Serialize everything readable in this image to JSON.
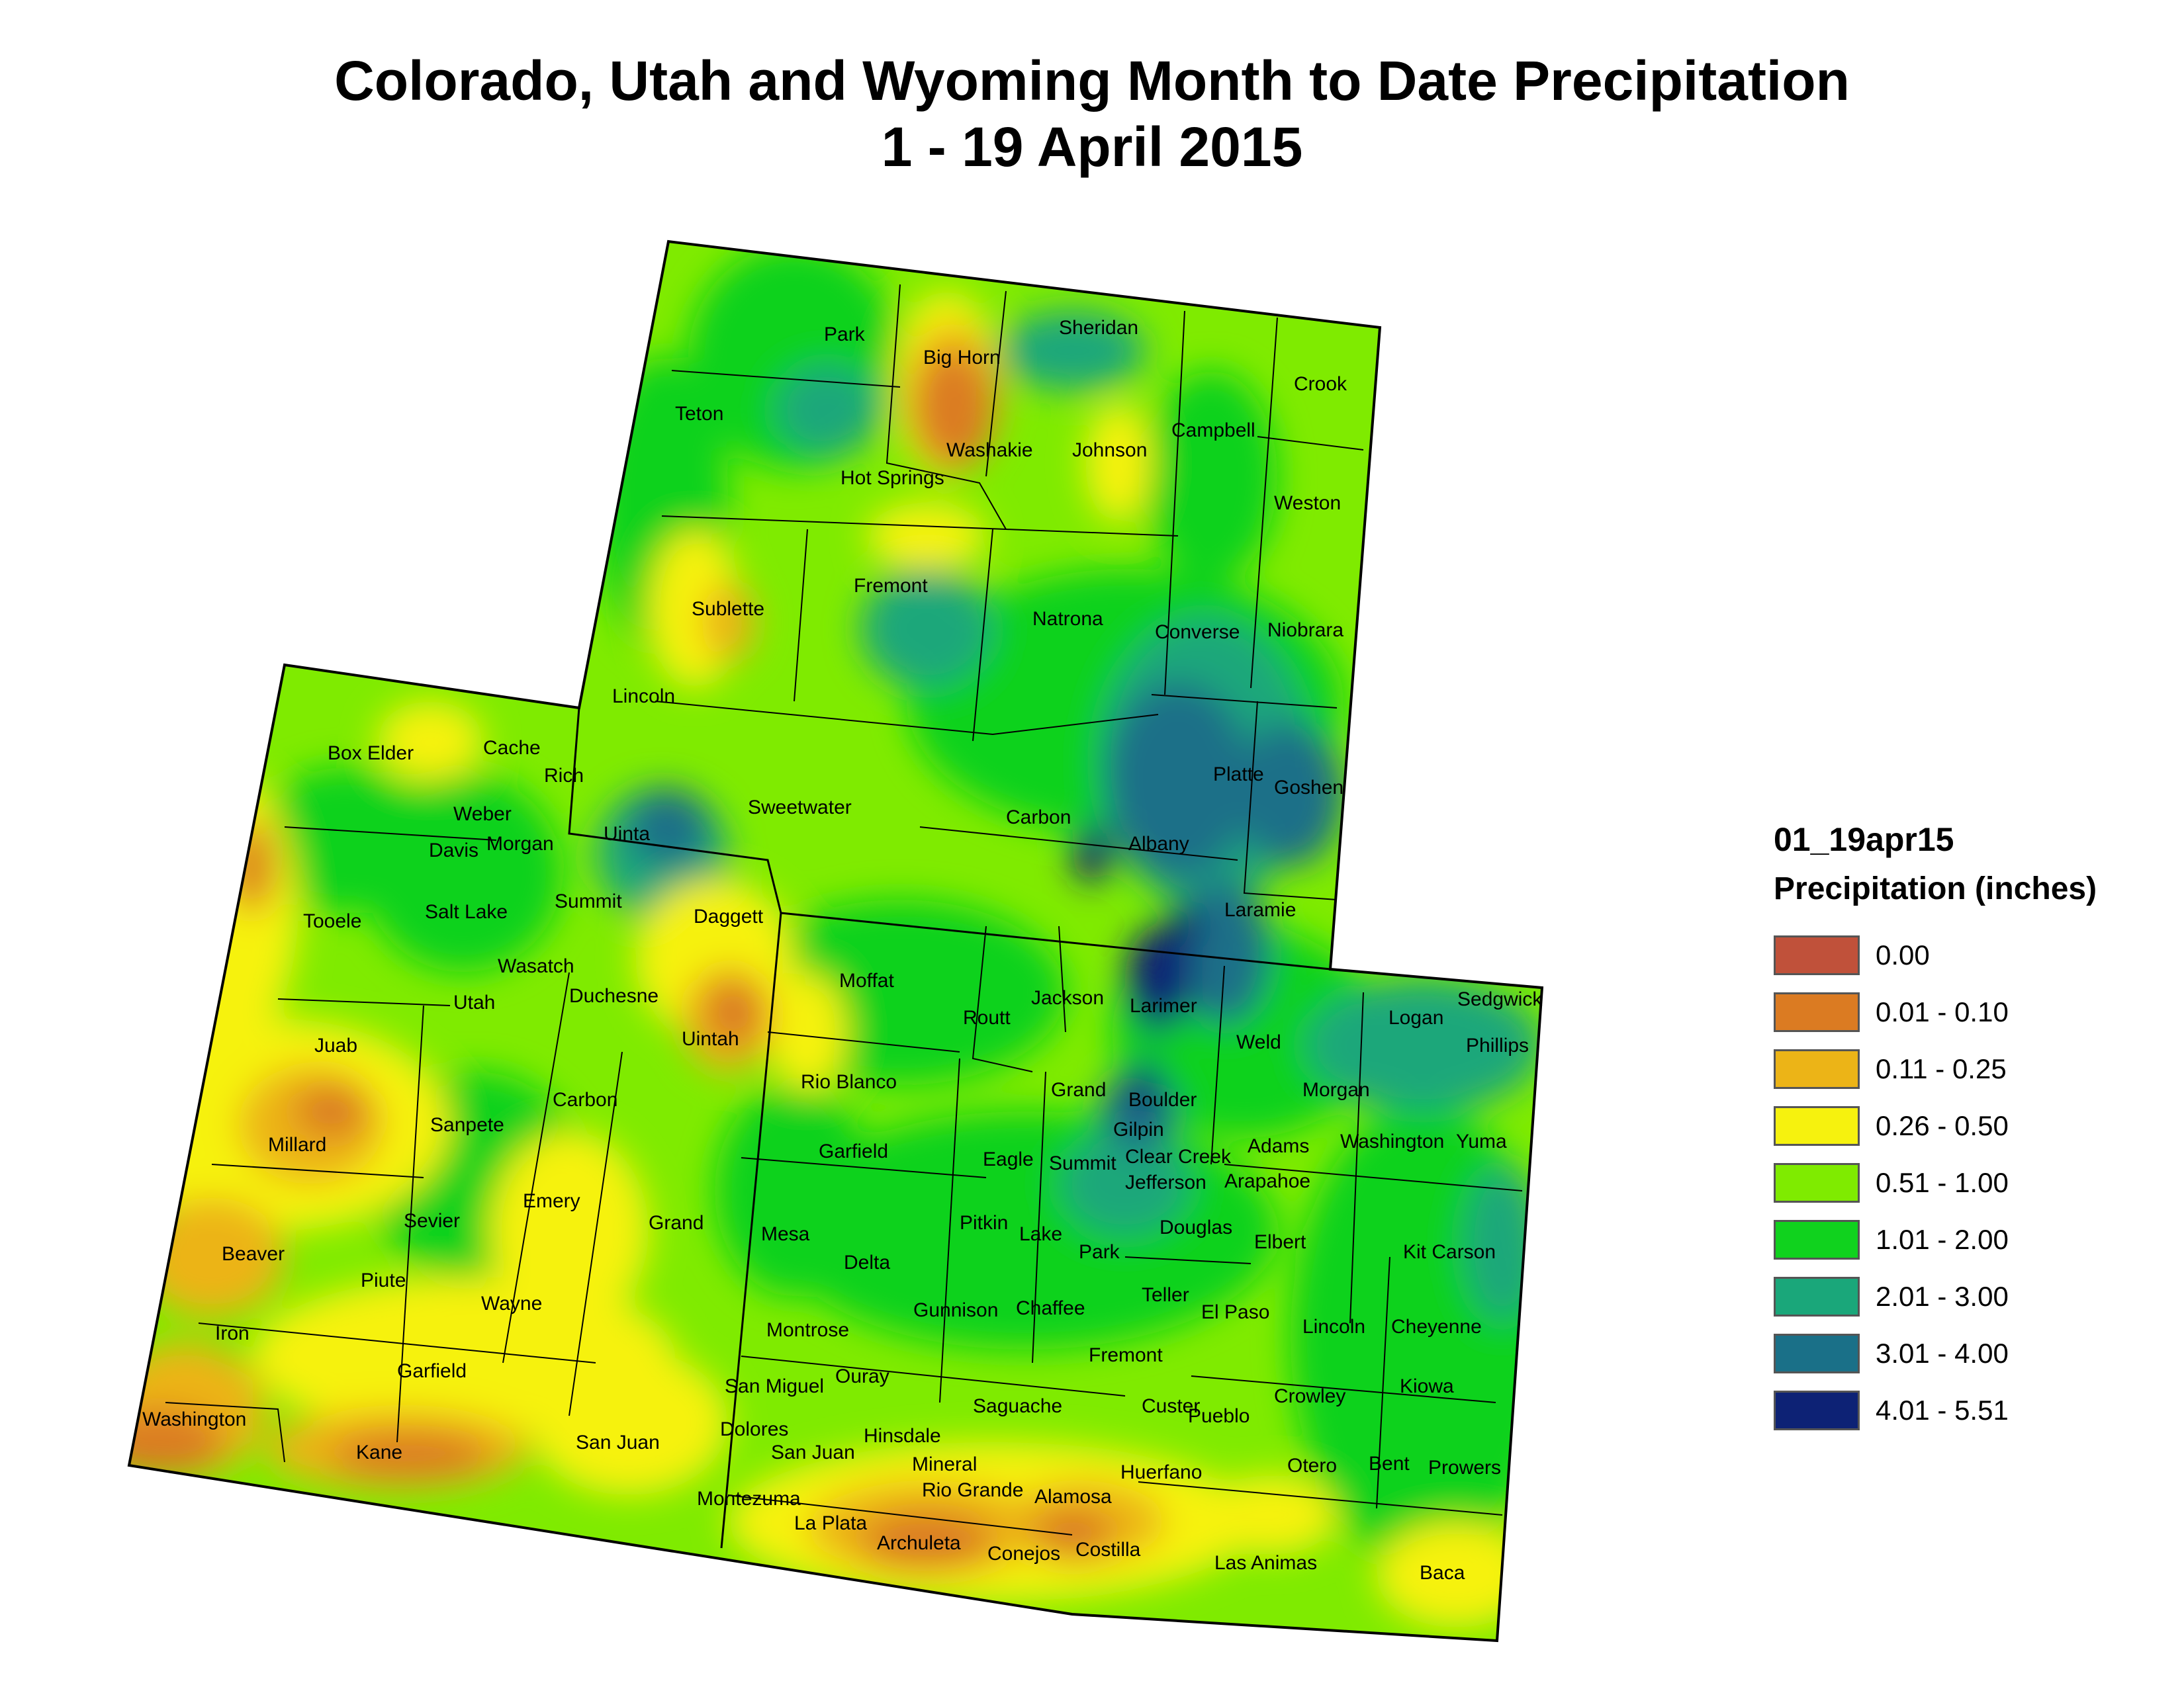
{
  "title": "Colorado, Utah and Wyoming Month to Date Precipitation",
  "subtitle": "1 - 19 April 2015",
  "legend": {
    "layer": "01_19apr15",
    "subtitle": "Precipitation (inches)",
    "classes": [
      {
        "label": "0.00",
        "color": "#c0513a"
      },
      {
        "label": "0.01 - 0.10",
        "color": "#db7b22"
      },
      {
        "label": "0.11 - 0.25",
        "color": "#ecb417"
      },
      {
        "label": "0.26 - 0.50",
        "color": "#f6f20e"
      },
      {
        "label": "0.51 - 1.00",
        "color": "#7feb00"
      },
      {
        "label": "1.01 - 2.00",
        "color": "#10d21e"
      },
      {
        "label": "2.01 - 3.00",
        "color": "#1aa77a"
      },
      {
        "label": "3.01 - 4.00",
        "color": "#1a7088"
      },
      {
        "label": "4.01 - 5.51",
        "color": "#0d2275"
      }
    ]
  },
  "counties": {
    "wyoming": [
      "Park",
      "Big Horn",
      "Sheridan",
      "Crook",
      "Teton",
      "Washakie",
      "Johnson",
      "Campbell",
      "Hot Springs",
      "Weston",
      "Fremont",
      "Sublette",
      "Natrona",
      "Converse",
      "Niobrara",
      "Lincoln",
      "Platte",
      "Goshen",
      "Sweetwater",
      "Carbon",
      "Uinta",
      "Albany",
      "Laramie"
    ],
    "utah": [
      "Box Elder",
      "Cache",
      "Rich",
      "Weber",
      "Davis",
      "Morgan",
      "Tooele",
      "Salt Lake",
      "Summit",
      "Daggett",
      "Wasatch",
      "Utah",
      "Duchesne",
      "Uintah",
      "Juab",
      "Sanpete",
      "Carbon",
      "Millard",
      "Emery",
      "Sevier",
      "Grand",
      "Beaver",
      "Piute",
      "Wayne",
      "Iron",
      "Garfield",
      "Washington",
      "Kane",
      "San Juan"
    ],
    "colorado": [
      "Moffat",
      "Routt",
      "Jackson",
      "Larimer",
      "Logan",
      "Sedgwick",
      "Phillips",
      "Weld",
      "Rio Blanco",
      "Grand",
      "Boulder",
      "Morgan",
      "Gilpin",
      "Garfield",
      "Eagle",
      "Summit",
      "Clear Creek",
      "Adams",
      "Washington",
      "Yuma",
      "Jefferson",
      "Arapahoe",
      "Mesa",
      "Pitkin",
      "Lake",
      "Douglas",
      "Elbert",
      "Park",
      "Kit Carson",
      "Delta",
      "Gunnison",
      "Chaffee",
      "Teller",
      "El Paso",
      "Lincoln",
      "Cheyenne",
      "Montrose",
      "Fremont",
      "San Miguel",
      "Ouray",
      "Crowley",
      "Kiowa",
      "Saguache",
      "Custer",
      "Pueblo",
      "Dolores",
      "Hinsdale",
      "San Juan",
      "Mineral",
      "Otero",
      "Bent",
      "Prowers",
      "Huerfano",
      "Montezuma",
      "Rio Grande",
      "Alamosa",
      "La Plata",
      "Archuleta",
      "Conejos",
      "Costilla",
      "Las Animas",
      "Baca"
    ]
  }
}
